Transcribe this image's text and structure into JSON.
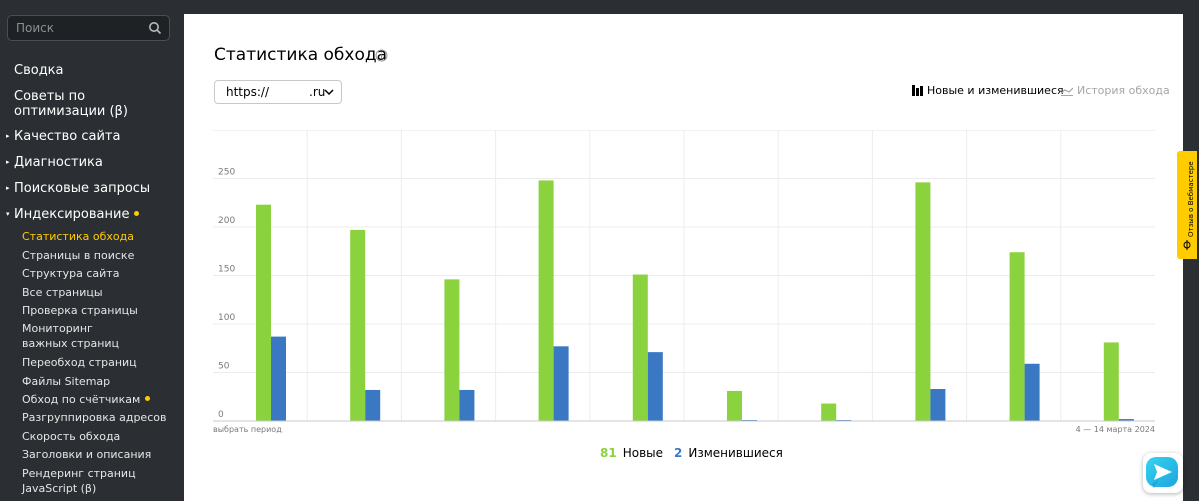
{
  "sidebar": {
    "search_placeholder": "Поиск",
    "top_items": [
      "Сводка",
      "Советы по",
      "оптимизации (β)"
    ],
    "sections": [
      "Качество сайта",
      "Диагностика",
      "Поисковые запросы",
      "Индексирование"
    ],
    "sub_items": [
      "Статистика обхода",
      "Страницы в поиске",
      "Структура сайта",
      "Все страницы",
      "Проверка страницы",
      "Мониторинг",
      "важных страниц",
      "Переобход страниц",
      "Файлы Sitemap",
      "Обход по счётчикам",
      "Разгруппировка адресов",
      "Скорость обхода",
      "Заголовки и описания",
      "Рендеринг страниц",
      "JavaScript (β)"
    ]
  },
  "main": {
    "title": "Статистика обхода",
    "site_prefix": "https://",
    "site_suffix": ".ru",
    "view_new": "Новые и изменившиеся",
    "view_history": "История обхода"
  },
  "chart_data": {
    "type": "bar",
    "series": [
      {
        "name": "Новые",
        "color": "#8bd23f",
        "values": [
          223,
          197,
          146,
          248,
          151,
          31,
          18,
          246,
          174,
          81
        ]
      },
      {
        "name": "Изменившиеся",
        "color": "#3a78c3",
        "values": [
          87,
          32,
          32,
          77,
          71,
          1,
          1,
          33,
          59,
          2
        ]
      }
    ],
    "ylim": [
      0,
      300
    ],
    "yticks": [
      0,
      50,
      100,
      150,
      200,
      250
    ],
    "grid": true,
    "x_left_label": "выбрать период",
    "x_right_label": "4 — 14 марта 2024",
    "legend": [
      {
        "value": "81",
        "label": "Новые",
        "color": "#8bd23f"
      },
      {
        "value": "2",
        "label": "Изменившиеся",
        "color": "#3a78c3"
      }
    ]
  },
  "feedback_tab": "Отзыв о Вебмастере",
  "colors": {
    "accent": "#ffcc00",
    "new": "#8bd23f",
    "changed": "#3a78c3"
  }
}
